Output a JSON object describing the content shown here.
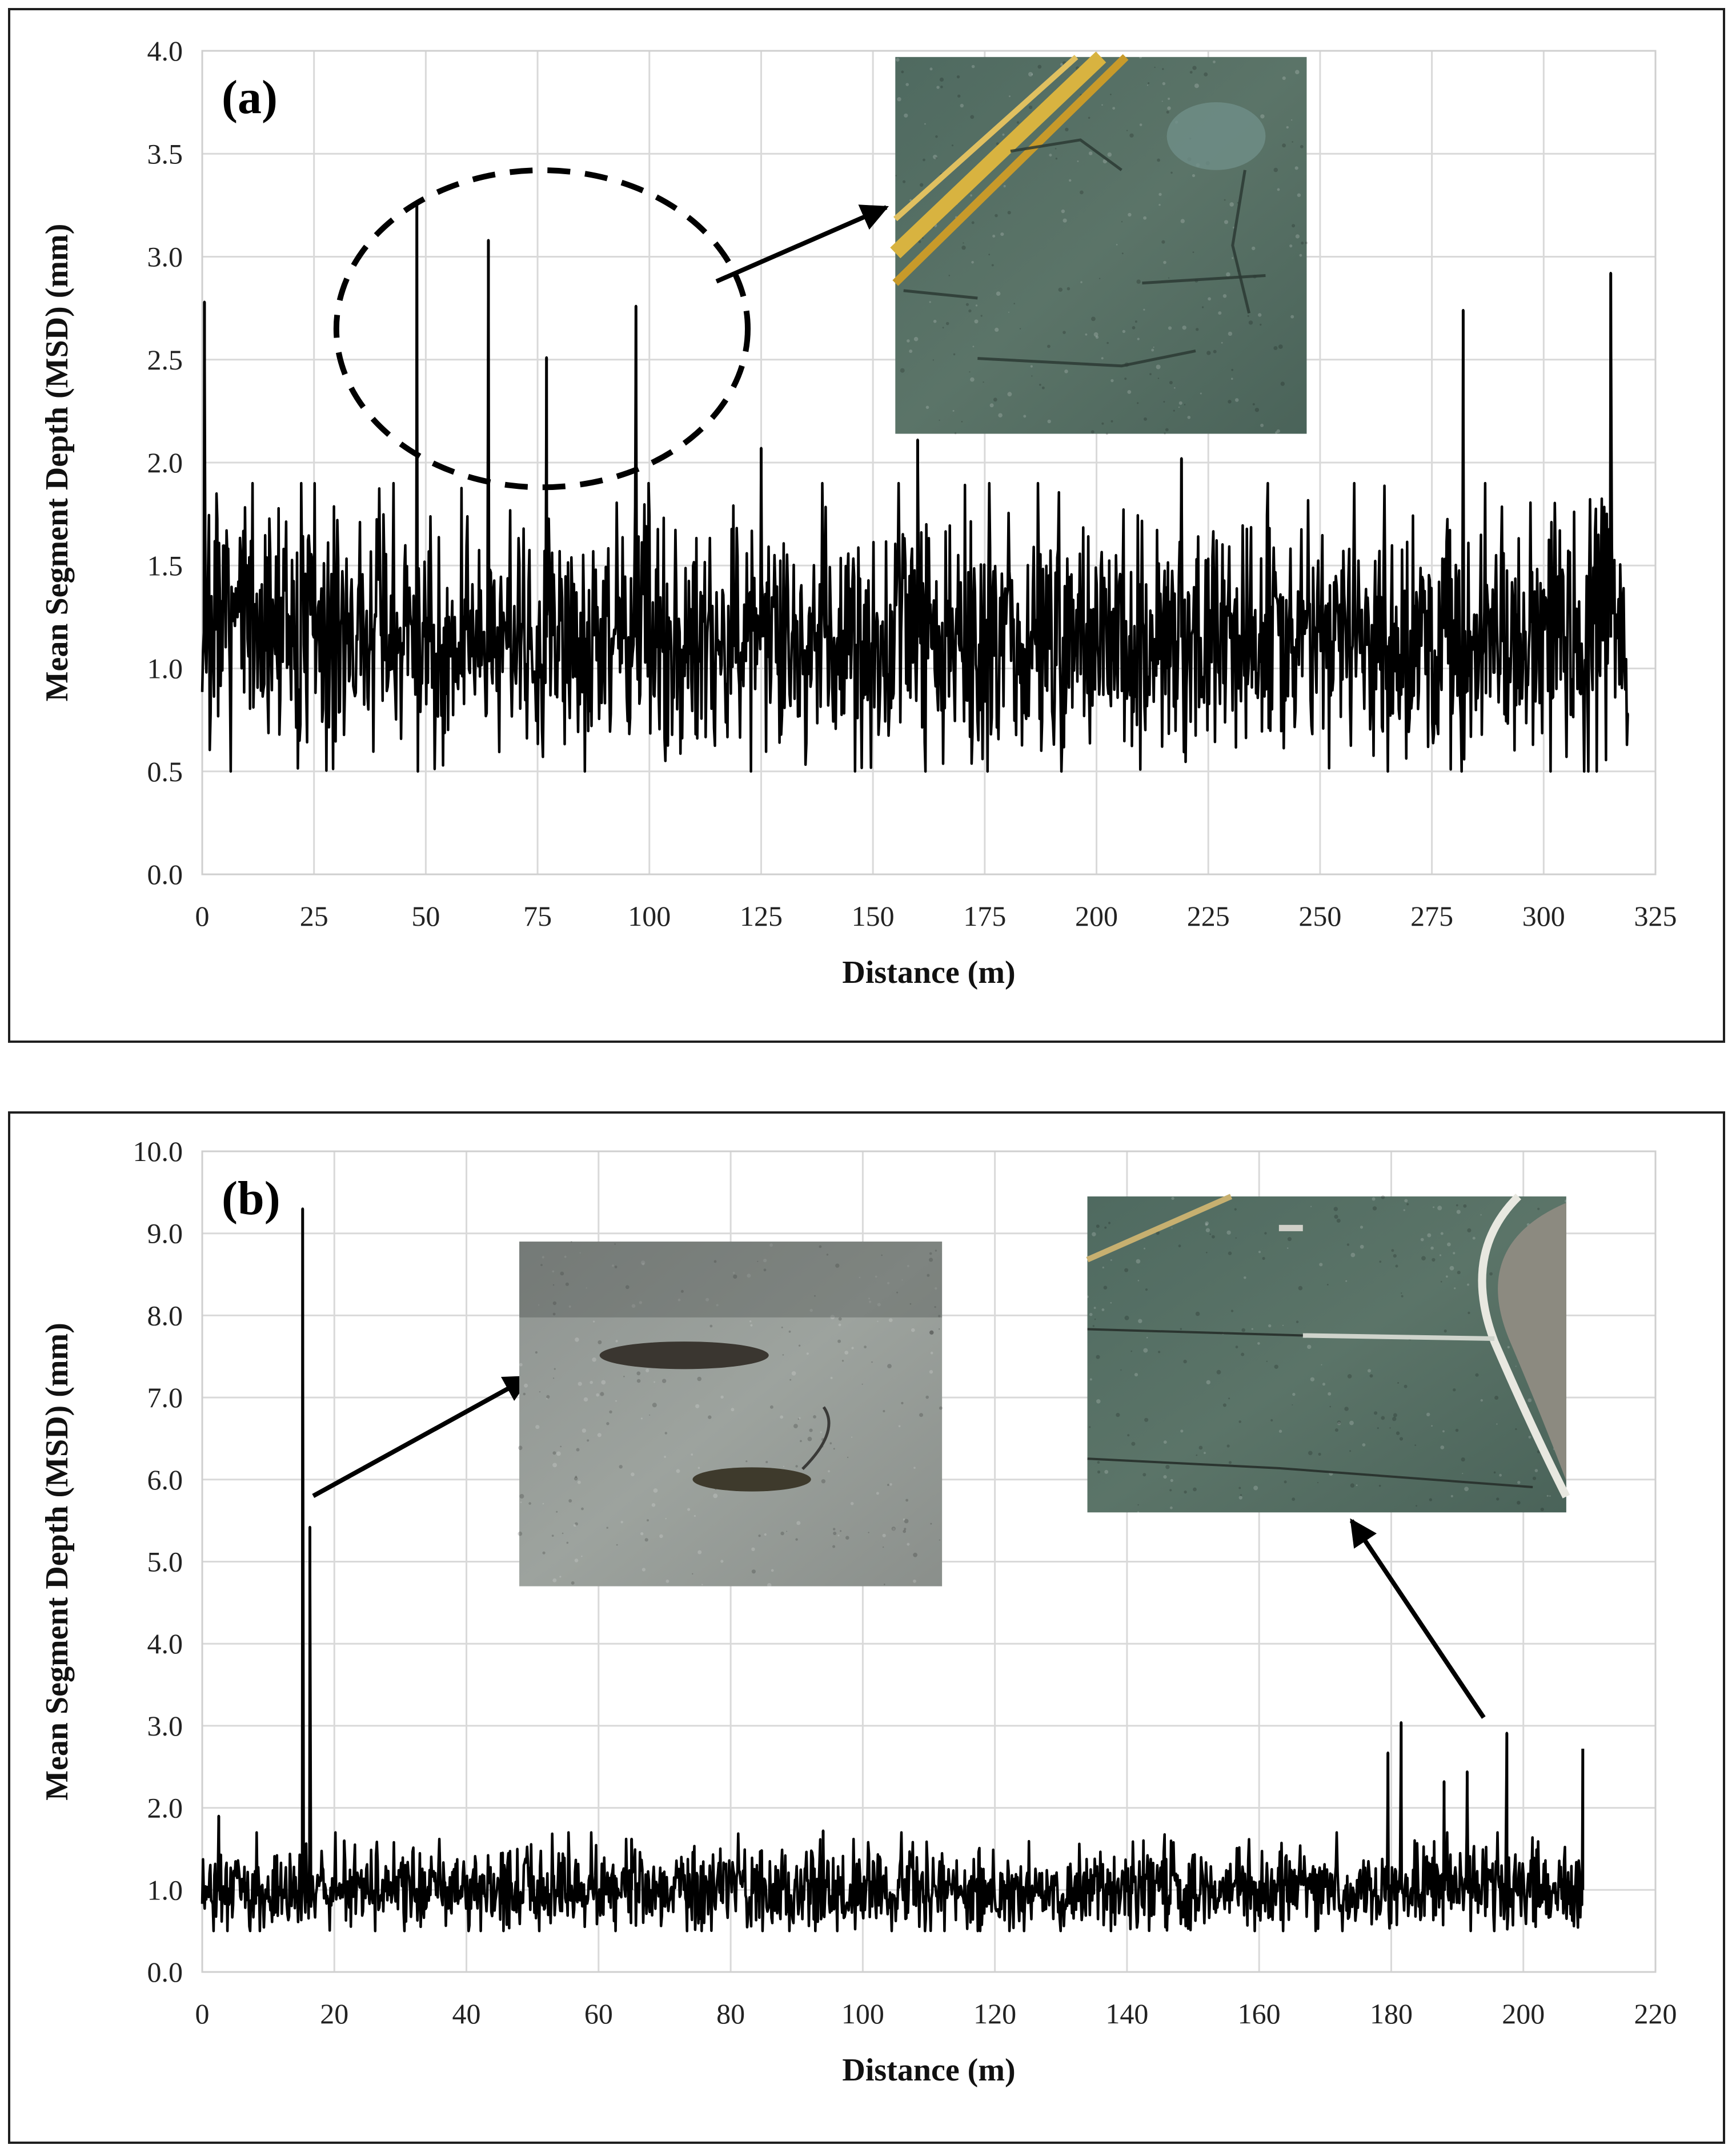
{
  "chart_data": [
    {
      "type": "line",
      "panel_label": "(a)",
      "xlabel": "Distance (m)",
      "ylabel": "Mean Segment Depth (MSD) (mm)",
      "xlim": [
        0,
        325
      ],
      "ylim": [
        0,
        4.0
      ],
      "x_ticks": [
        "0",
        "25",
        "50",
        "75",
        "100",
        "125",
        "150",
        "175",
        "200",
        "225",
        "250",
        "275",
        "300",
        "325"
      ],
      "y_ticks": [
        "0.0",
        "0.5",
        "1.0",
        "1.5",
        "2.0",
        "2.5",
        "3.0",
        "3.5",
        "4.0"
      ],
      "grid": true,
      "x_max_data": 319,
      "baseline_mean": 1.15,
      "baseline_range": [
        0.5,
        1.9
      ],
      "peaks": [
        {
          "x": 0.5,
          "y": 2.78
        },
        {
          "x": 48,
          "y": 3.26
        },
        {
          "x": 64,
          "y": 3.08
        },
        {
          "x": 77,
          "y": 2.51
        },
        {
          "x": 97,
          "y": 2.76
        },
        {
          "x": 125,
          "y": 2.07
        },
        {
          "x": 160,
          "y": 2.11
        },
        {
          "x": 219,
          "y": 2.02
        },
        {
          "x": 282,
          "y": 2.74
        },
        {
          "x": 315,
          "y": 2.92
        }
      ],
      "annotations": [
        {
          "type": "dashed-ellipse",
          "center": [
            76,
            2.65
          ],
          "radii": [
            46,
            0.77
          ]
        },
        {
          "type": "arrow",
          "from": [
            115,
            2.88
          ],
          "to": [
            153,
            3.24
          ]
        },
        {
          "type": "photo-inset",
          "description": "road surface with cracks",
          "x0": 155,
          "x1": 247,
          "y0": 2.14,
          "y1": 3.97
        }
      ]
    },
    {
      "type": "line",
      "panel_label": "(b)",
      "xlabel": "Distance (m)",
      "ylabel": "Mean Segment Depth (MSD) (mm)",
      "xlim": [
        0,
        220
      ],
      "ylim": [
        0,
        10.0
      ],
      "x_ticks": [
        "0",
        "20",
        "40",
        "60",
        "80",
        "100",
        "120",
        "140",
        "160",
        "180",
        "200",
        "220"
      ],
      "y_ticks": [
        "0.0",
        "1.0",
        "2.0",
        "3.0",
        "4.0",
        "5.0",
        "6.0",
        "7.0",
        "8.0",
        "9.0",
        "10.0"
      ],
      "grid": true,
      "x_max_data": 209,
      "baseline_mean": 1.0,
      "baseline_range": [
        0.5,
        1.7
      ],
      "peaks": [
        {
          "x": 2.5,
          "y": 1.9
        },
        {
          "x": 15.2,
          "y": 9.3
        },
        {
          "x": 16.3,
          "y": 5.42
        },
        {
          "x": 21.5,
          "y": 1.6
        },
        {
          "x": 65,
          "y": 1.62
        },
        {
          "x": 94,
          "y": 1.72
        },
        {
          "x": 179.5,
          "y": 2.67
        },
        {
          "x": 181.5,
          "y": 3.04
        },
        {
          "x": 188,
          "y": 2.32
        },
        {
          "x": 191.5,
          "y": 2.44
        },
        {
          "x": 197.5,
          "y": 2.91
        },
        {
          "x": 209,
          "y": 2.72
        }
      ],
      "annotations": [
        {
          "type": "arrow",
          "from": [
            16.8,
            5.8
          ],
          "to": [
            49.5,
            7.25
          ]
        },
        {
          "type": "photo-inset",
          "description": "pothole on pavement",
          "x0": 48,
          "x1": 112,
          "y0": 4.7,
          "y1": 8.9
        },
        {
          "type": "arrow",
          "from": [
            194,
            3.1
          ],
          "to": [
            174,
            5.5
          ]
        },
        {
          "type": "photo-inset",
          "description": "road with transverse cracks and curb",
          "x0": 134,
          "x1": 206.5,
          "y0": 5.6,
          "y1": 9.45
        }
      ]
    }
  ]
}
